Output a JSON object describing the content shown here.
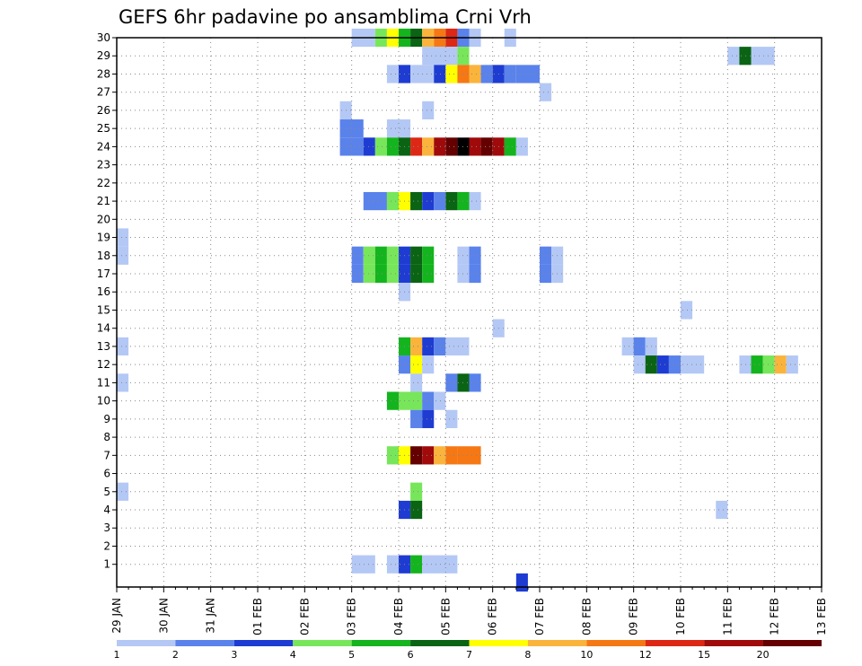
{
  "chart_data": {
    "type": "heatmap",
    "title": "GEFS 6hr padavine po ansamblima Crni Vrh",
    "y_ticks": [
      "1",
      "2",
      "3",
      "4",
      "5",
      "6",
      "7",
      "8",
      "9",
      "10",
      "11",
      "12",
      "13",
      "14",
      "15",
      "16",
      "17",
      "18",
      "19",
      "20",
      "21",
      "22",
      "23",
      "24",
      "25",
      "26",
      "27",
      "28",
      "29",
      "30"
    ],
    "x_ticks": [
      "29 JAN",
      "30 JAN",
      "31 JAN",
      "01 FEB",
      "02 FEB",
      "03 FEB",
      "04 FEB",
      "05 FEB",
      "06 FEB",
      "07 FEB",
      "08 FEB",
      "09 FEB",
      "10 FEB",
      "11 FEB",
      "12 FEB",
      "13 FEB"
    ],
    "ylim": [
      0,
      30
    ],
    "x_steps_6h": 60,
    "grid": true,
    "colorbar": {
      "labels": [
        "1",
        "2",
        "3",
        "4",
        "5",
        "6",
        "7",
        "8",
        "10",
        "12",
        "15",
        "20"
      ],
      "colors": [
        "#b4c8f5",
        "#5a82eb",
        "#1e3cd2",
        "#78e65a",
        "#14b41e",
        "#0a6414",
        "#ffff00",
        "#fab43c",
        "#f57814",
        "#dc2814",
        "#a00a0a",
        "#640000"
      ]
    },
    "cells": [
      [
        30,
        [
          [
            20,
            2,
            0
          ],
          [
            22,
            1,
            3
          ],
          [
            23,
            1,
            6
          ],
          [
            24,
            1,
            4
          ],
          [
            25,
            1,
            5
          ],
          [
            26,
            1,
            7
          ],
          [
            27,
            1,
            8
          ],
          [
            28,
            1,
            9
          ],
          [
            29,
            1,
            1
          ],
          [
            30,
            1,
            0
          ],
          [
            33,
            1,
            0
          ]
        ]
      ],
      [
        29,
        [
          [
            26,
            3,
            0
          ],
          [
            29,
            1,
            3
          ],
          [
            52,
            1,
            0
          ],
          [
            53,
            1,
            5
          ],
          [
            54,
            2,
            0
          ]
        ]
      ],
      [
        28,
        [
          [
            23,
            1,
            0
          ],
          [
            24,
            1,
            2
          ],
          [
            25,
            2,
            0
          ],
          [
            27,
            1,
            2
          ],
          [
            28,
            1,
            6
          ],
          [
            29,
            1,
            8
          ],
          [
            30,
            1,
            7
          ],
          [
            31,
            1,
            1
          ],
          [
            32,
            1,
            2
          ],
          [
            33,
            1,
            1
          ],
          [
            34,
            2,
            1
          ]
        ]
      ],
      [
        27,
        [
          [
            36,
            1,
            0
          ]
        ]
      ],
      [
        26,
        [
          [
            19,
            1,
            0
          ],
          [
            26,
            1,
            0
          ]
        ]
      ],
      [
        25,
        [
          [
            19,
            2,
            1
          ],
          [
            23,
            2,
            0
          ]
        ]
      ],
      [
        24,
        [
          [
            19,
            2,
            1
          ]
        ]
      ],
      [
        24,
        [
          [
            21,
            1,
            2
          ],
          [
            22,
            1,
            3
          ],
          [
            23,
            1,
            4
          ],
          [
            24,
            1,
            5
          ],
          [
            25,
            1,
            9
          ],
          [
            26,
            1,
            7
          ],
          [
            27,
            1,
            10
          ],
          [
            28,
            1,
            11
          ],
          [
            29,
            1,
            12
          ],
          [
            30,
            1,
            10
          ],
          [
            31,
            1,
            11
          ],
          [
            32,
            1,
            10
          ],
          [
            33,
            1,
            4
          ],
          [
            34,
            1,
            0
          ]
        ]
      ],
      [
        21,
        [
          [
            21,
            2,
            1
          ],
          [
            23,
            1,
            3
          ],
          [
            24,
            1,
            6
          ],
          [
            25,
            1,
            5
          ],
          [
            26,
            1,
            2
          ],
          [
            27,
            1,
            1
          ],
          [
            28,
            1,
            5
          ],
          [
            29,
            1,
            4
          ],
          [
            30,
            1,
            0
          ]
        ]
      ],
      [
        19,
        [
          [
            0,
            1,
            0
          ]
        ]
      ],
      [
        18,
        [
          [
            0,
            1,
            0
          ],
          [
            20,
            1,
            1
          ],
          [
            21,
            1,
            3
          ],
          [
            22,
            1,
            4
          ],
          [
            23,
            1,
            3
          ],
          [
            24,
            1,
            2
          ],
          [
            25,
            1,
            5
          ],
          [
            26,
            1,
            4
          ],
          [
            29,
            1,
            0
          ],
          [
            30,
            1,
            1
          ],
          [
            36,
            1,
            1
          ],
          [
            37,
            1,
            0
          ]
        ]
      ],
      [
        17,
        [
          [
            20,
            1,
            1
          ],
          [
            21,
            1,
            3
          ],
          [
            22,
            1,
            4
          ],
          [
            23,
            1,
            3
          ],
          [
            24,
            1,
            2
          ],
          [
            25,
            1,
            5
          ],
          [
            26,
            1,
            4
          ],
          [
            29,
            1,
            0
          ],
          [
            30,
            1,
            1
          ],
          [
            36,
            1,
            1
          ],
          [
            37,
            1,
            0
          ]
        ]
      ],
      [
        16,
        [
          [
            24,
            1,
            0
          ]
        ]
      ],
      [
        15,
        [
          [
            48,
            1,
            0
          ]
        ]
      ],
      [
        14,
        [
          [
            32,
            1,
            0
          ]
        ]
      ],
      [
        13,
        [
          [
            0,
            1,
            0
          ],
          [
            24,
            1,
            4
          ],
          [
            25,
            1,
            7
          ],
          [
            26,
            1,
            2
          ],
          [
            27,
            1,
            1
          ],
          [
            28,
            2,
            0
          ],
          [
            43,
            1,
            0
          ],
          [
            44,
            1,
            1
          ],
          [
            45,
            1,
            0
          ]
        ]
      ],
      [
        12,
        [
          [
            24,
            1,
            1
          ],
          [
            25,
            1,
            6
          ],
          [
            26,
            1,
            0
          ],
          [
            44,
            1,
            0
          ],
          [
            45,
            1,
            5
          ],
          [
            46,
            1,
            2
          ],
          [
            47,
            1,
            1
          ],
          [
            48,
            2,
            0
          ],
          [
            53,
            1,
            0
          ],
          [
            54,
            1,
            4
          ],
          [
            55,
            1,
            3
          ],
          [
            56,
            1,
            7
          ],
          [
            57,
            1,
            0
          ]
        ]
      ],
      [
        11,
        [
          [
            0,
            1,
            0
          ],
          [
            25,
            1,
            0
          ],
          [
            28,
            1,
            1
          ],
          [
            29,
            1,
            5
          ],
          [
            30,
            1,
            1
          ]
        ]
      ],
      [
        10,
        [
          [
            23,
            1,
            4
          ],
          [
            24,
            2,
            3
          ],
          [
            26,
            1,
            1
          ],
          [
            27,
            1,
            0
          ]
        ]
      ],
      [
        9,
        [
          [
            25,
            1,
            1
          ],
          [
            26,
            1,
            2
          ],
          [
            28,
            1,
            0
          ]
        ]
      ],
      [
        7,
        [
          [
            23,
            1,
            3
          ],
          [
            24,
            1,
            6
          ],
          [
            25,
            1,
            11
          ],
          [
            26,
            1,
            10
          ],
          [
            27,
            1,
            7
          ],
          [
            28,
            1,
            8
          ],
          [
            29,
            2,
            8
          ]
        ]
      ],
      [
        5,
        [
          [
            0,
            1,
            0
          ],
          [
            25,
            1,
            3
          ]
        ]
      ],
      [
        4,
        [
          [
            24,
            1,
            2
          ],
          [
            25,
            1,
            5
          ],
          [
            51,
            1,
            0
          ]
        ]
      ],
      [
        1,
        [
          [
            20,
            2,
            0
          ],
          [
            23,
            1,
            0
          ],
          [
            24,
            1,
            2
          ],
          [
            25,
            1,
            4
          ],
          [
            26,
            3,
            0
          ]
        ]
      ],
      [
        0,
        [
          [
            34,
            1,
            2
          ]
        ]
      ]
    ]
  }
}
